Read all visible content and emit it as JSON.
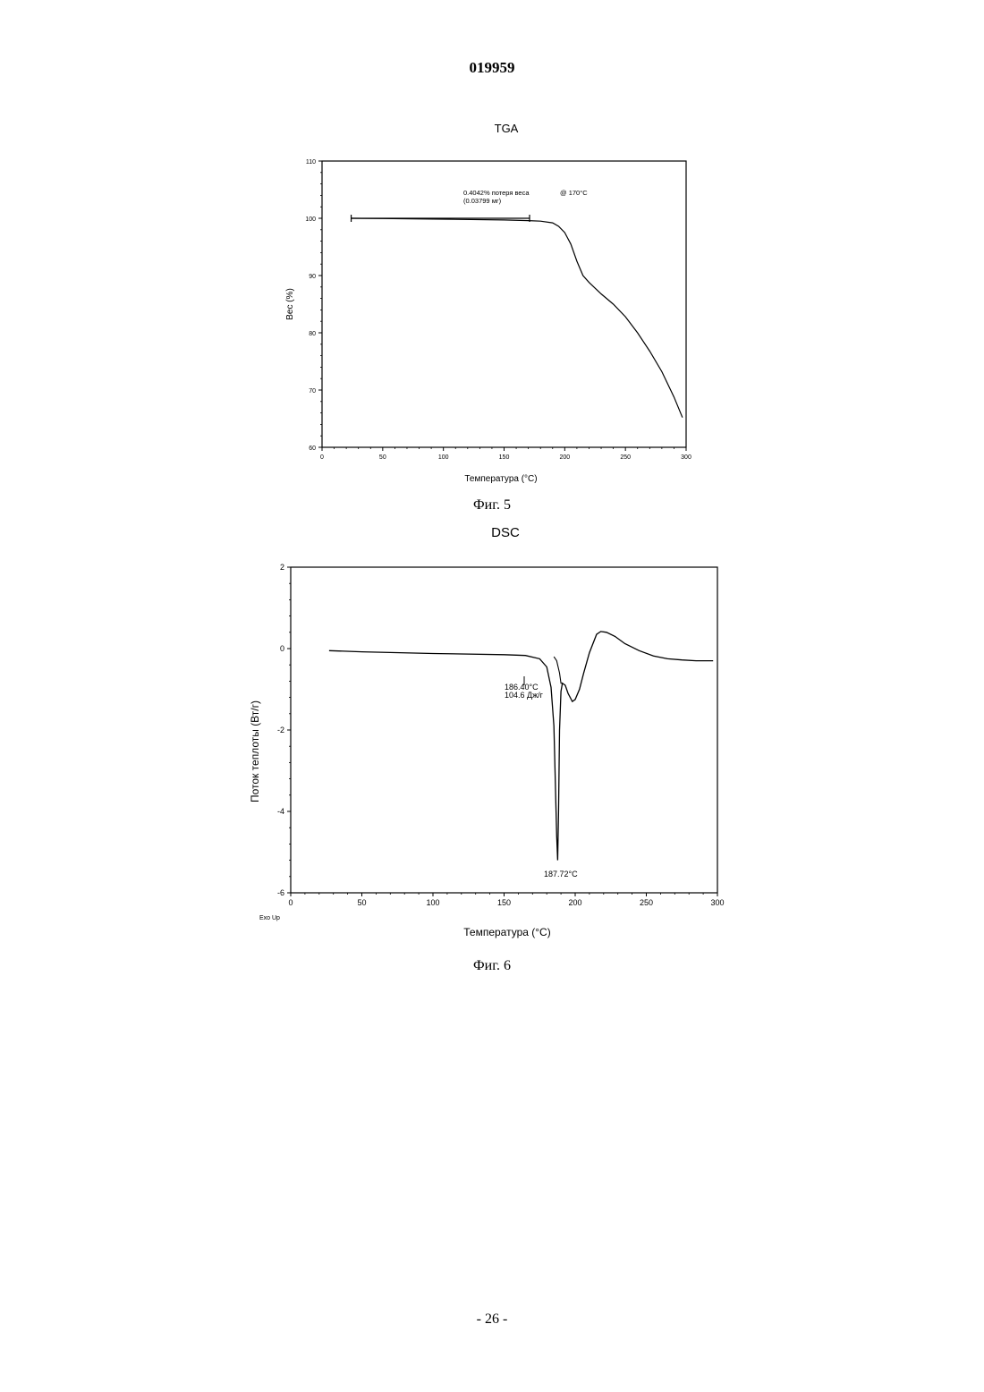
{
  "page": {
    "doc_number": "019959",
    "page_number": "- 26 -"
  },
  "chart_data": [
    {
      "type": "line",
      "title": "TGA",
      "caption": "Фиг. 5",
      "xlabel": "Температура (°C)",
      "ylabel": "Вес (%)",
      "xlim": [
        0,
        300
      ],
      "ylim": [
        60,
        110
      ],
      "xticks": [
        0,
        50,
        100,
        150,
        200,
        250,
        300
      ],
      "yticks": [
        60,
        70,
        80,
        90,
        100,
        110
      ],
      "grid": false,
      "annotation": {
        "line1": "0.4042% потеря веса",
        "line2": "(0.03799 мг)",
        "at": "@ 170°C"
      },
      "bracket": {
        "x_start": 24,
        "x_end": 171,
        "y": 100
      },
      "series": [
        {
          "x": [
            24,
            50,
            100,
            150,
            170,
            180,
            190,
            195,
            200,
            205,
            210,
            215,
            220,
            230,
            240,
            250,
            260,
            270,
            280,
            290,
            297
          ],
          "y": [
            100.0,
            99.95,
            99.85,
            99.7,
            99.6,
            99.5,
            99.2,
            98.6,
            97.5,
            95.5,
            92.5,
            90.0,
            88.8,
            86.8,
            85.0,
            82.8,
            80.0,
            76.8,
            73.2,
            68.8,
            65.2
          ]
        }
      ]
    },
    {
      "type": "line",
      "title": "DSC",
      "caption": "Фиг. 6",
      "xlabel": "Температура (°C)",
      "ylabel": "Поток теплоты (Вт/г)",
      "corner_label": "Exo Up",
      "xlim": [
        0,
        300
      ],
      "ylim": [
        -6,
        2
      ],
      "xticks": [
        0,
        50,
        100,
        150,
        200,
        250,
        300
      ],
      "yticks": [
        -6,
        -4,
        -2,
        0,
        2
      ],
      "grid": false,
      "annotations": [
        {
          "line1": "186.40°C",
          "line2": "104.6 Дж/г"
        },
        {
          "line1": "187.72°C"
        }
      ],
      "series": [
        {
          "x": [
            27,
            50,
            100,
            150,
            165,
            175,
            180,
            183,
            185,
            186,
            187,
            187.7,
            188.3,
            189,
            190,
            191,
            193,
            195,
            198,
            200,
            203,
            206,
            210,
            215,
            218,
            222,
            228,
            235,
            245,
            255,
            265,
            275,
            285,
            297
          ],
          "y": [
            -0.05,
            -0.08,
            -0.12,
            -0.15,
            -0.17,
            -0.25,
            -0.45,
            -0.95,
            -1.9,
            -3.2,
            -4.6,
            -5.2,
            -4.0,
            -2.0,
            -1.05,
            -0.85,
            -0.9,
            -1.1,
            -1.3,
            -1.25,
            -1.0,
            -0.6,
            -0.1,
            0.35,
            0.42,
            0.4,
            0.3,
            0.12,
            -0.05,
            -0.18,
            -0.25,
            -0.28,
            -0.3,
            -0.3
          ]
        },
        {
          "x": [
            185,
            187,
            189,
            190,
            191
          ],
          "y": [
            -0.2,
            -0.3,
            -0.6,
            -0.85,
            -0.85
          ]
        }
      ]
    }
  ]
}
